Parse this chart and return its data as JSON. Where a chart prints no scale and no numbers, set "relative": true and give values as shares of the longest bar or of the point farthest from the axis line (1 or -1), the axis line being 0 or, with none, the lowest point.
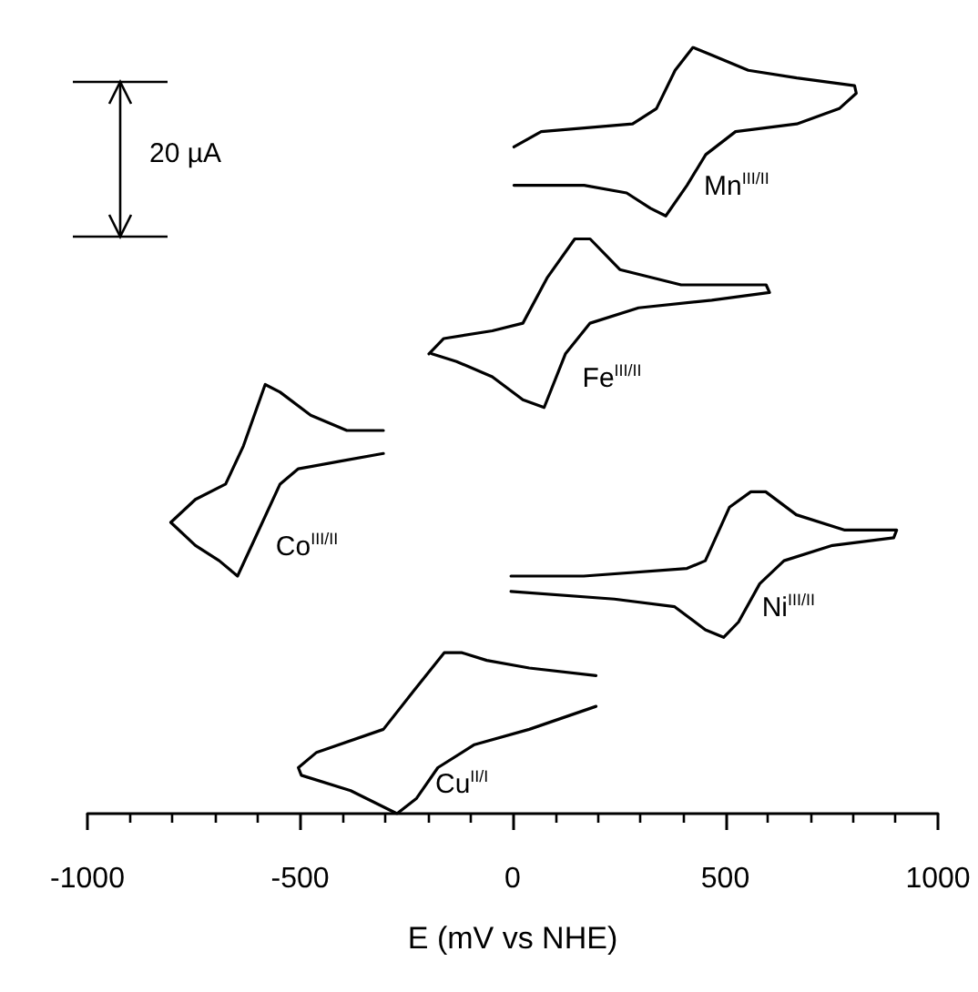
{
  "chart_data": {
    "type": "line",
    "relative": true,
    "xlabel": "E (mV vs NHE)",
    "xlim": [
      -1000,
      1000
    ],
    "xticks": [
      -1000,
      -500,
      0,
      500,
      1000
    ],
    "grid": false,
    "legend": false,
    "marker": "none",
    "line_style": "solid",
    "annotations": [
      "20 µA"
    ],
    "series": [
      {
        "name": "Mn$^{III/II}$",
        "color": "#000000",
        "x": [
          3,
          67,
          282,
          338,
          382,
          424,
          468,
          554,
          668,
          804,
          808,
          768,
          668,
          524,
          454,
          410,
          360,
          324,
          268,
          168,
          3
        ],
        "values": [
          0.87,
          0.89,
          0.9,
          0.92,
          0.97,
          1,
          0.99,
          0.97,
          0.96,
          0.95,
          0.94,
          0.92,
          0.9,
          0.89,
          0.86,
          0.82,
          0.78,
          0.79,
          0.81,
          0.82,
          0.82
        ]
      },
      {
        "name": "Fe$^{III/II}$",
        "color": "#000000",
        "x": [
          -197,
          -162,
          -48,
          24,
          82,
          146,
          182,
          252,
          396,
          596,
          604,
          468,
          296,
          182,
          124,
          74,
          24,
          -48,
          -132,
          -190
        ],
        "values": [
          0.6,
          0.62,
          0.63,
          0.64,
          0.7,
          0.75,
          0.75,
          0.71,
          0.69,
          0.69,
          0.68,
          0.67,
          0.66,
          0.64,
          0.6,
          0.53,
          0.54,
          0.57,
          0.59,
          0.6
        ]
      },
      {
        "name": "Co$^{III/II}$",
        "color": "#000000",
        "x": [
          -304,
          -390,
          -475,
          -547,
          -582,
          -633,
          -675,
          -746,
          -804,
          -746,
          -690,
          -647,
          -597,
          -547,
          -504,
          -404,
          -304
        ],
        "values": [
          0.5,
          0.5,
          0.52,
          0.55,
          0.56,
          0.48,
          0.43,
          0.41,
          0.38,
          0.35,
          0.33,
          0.31,
          0.37,
          0.43,
          0.45,
          0.46,
          0.47
        ]
      },
      {
        "name": "Ni$^{III/II}$",
        "color": "#000000",
        "x": [
          -4,
          167,
          410,
          453,
          510,
          560,
          595,
          667,
          781,
          903,
          896,
          752,
          638,
          581,
          531,
          496,
          453,
          381,
          239,
          -4
        ],
        "values": [
          0.31,
          0.31,
          0.32,
          0.33,
          0.4,
          0.42,
          0.42,
          0.39,
          0.37,
          0.37,
          0.36,
          0.35,
          0.33,
          0.3,
          0.25,
          0.23,
          0.24,
          0.27,
          0.28,
          0.29
        ]
      },
      {
        "name": "Cu$^{II/I}$",
        "color": "#000000",
        "x": [
          196,
          39,
          -61,
          -119,
          -161,
          -233,
          -304,
          -461,
          -504,
          -497,
          -381,
          -272,
          -226,
          -176,
          -90,
          39,
          196
        ],
        "values": [
          0.18,
          0.19,
          0.2,
          0.21,
          0.21,
          0.16,
          0.11,
          0.08,
          0.06,
          0.05,
          0.03,
          0,
          0.02,
          0.06,
          0.09,
          0.11,
          0.14
        ]
      }
    ]
  }
}
